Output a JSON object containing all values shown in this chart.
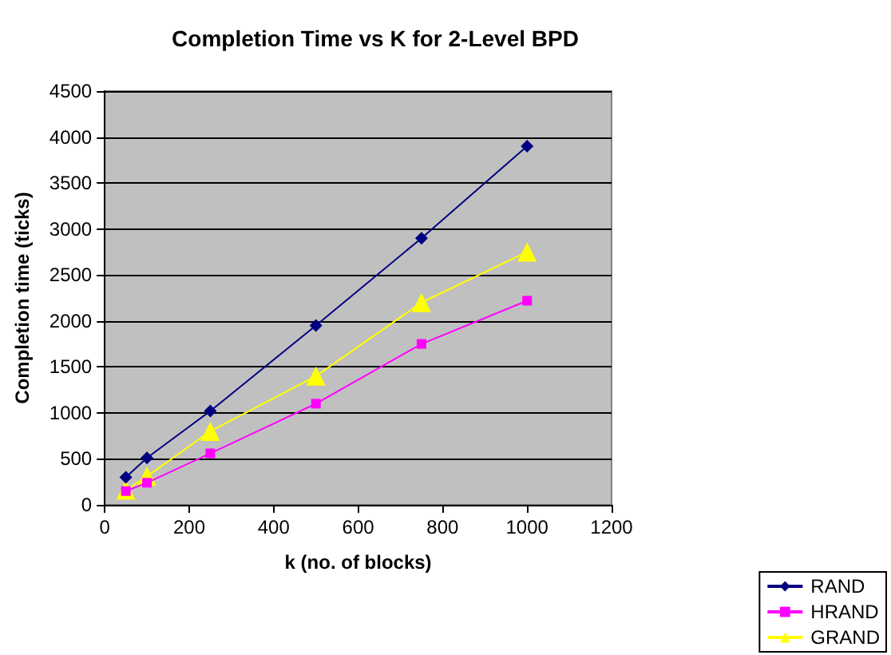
{
  "chart_data": {
    "type": "line",
    "title": "Completion Time vs K for 2-Level BPD",
    "xlabel": "k (no. of blocks)",
    "ylabel": "Completion time (ticks)",
    "x": [
      50,
      100,
      250,
      500,
      750,
      1000
    ],
    "series": [
      {
        "name": "RAND",
        "color": "#000080",
        "marker": "diamond",
        "values": [
          300,
          510,
          1020,
          1950,
          2900,
          3900
        ]
      },
      {
        "name": "HRAND",
        "color": "#ff00ff",
        "marker": "square",
        "values": [
          150,
          240,
          560,
          1100,
          1750,
          2220
        ]
      },
      {
        "name": "GRAND",
        "color": "#ffff00",
        "marker": "triangle",
        "values": [
          160,
          310,
          800,
          1400,
          2200,
          2750
        ]
      }
    ],
    "xlim": [
      0,
      1200
    ],
    "xticks": [
      0,
      200,
      400,
      600,
      800,
      1000,
      1200
    ],
    "ylim": [
      0,
      4500
    ],
    "yticks": [
      0,
      500,
      1000,
      1500,
      2000,
      2500,
      3000,
      3500,
      4000,
      4500
    ],
    "grid": "y",
    "legend": "bottom right"
  }
}
